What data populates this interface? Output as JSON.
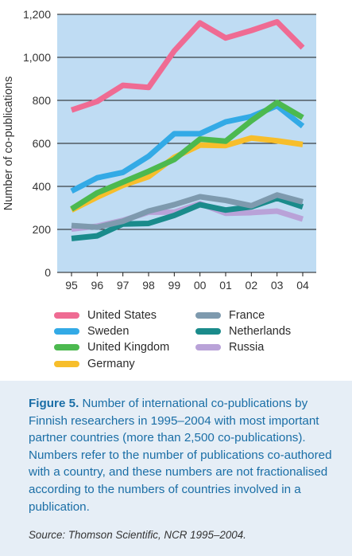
{
  "chart_data": {
    "type": "line",
    "x": [
      "95",
      "96",
      "97",
      "98",
      "99",
      "00",
      "01",
      "02",
      "03",
      "04"
    ],
    "ylabel": "Number of co-publications",
    "xlabel": "",
    "ylim": [
      0,
      1200
    ],
    "yticks": [
      "0",
      "200",
      "400",
      "600",
      "800",
      "1,000",
      "1,200"
    ],
    "ytick_values": [
      0,
      200,
      400,
      600,
      800,
      1000,
      1200
    ],
    "grid": true,
    "legend_position": "bottom",
    "series": [
      {
        "name": "United States",
        "color": "#ef6b93",
        "values": [
          755,
          795,
          870,
          860,
          1030,
          1160,
          1090,
          1125,
          1165,
          1045
        ]
      },
      {
        "name": "Sweden",
        "color": "#33aae6",
        "values": [
          378,
          440,
          465,
          540,
          645,
          645,
          700,
          725,
          775,
          680
        ]
      },
      {
        "name": "United Kingdom",
        "color": "#4cb94f",
        "values": [
          295,
          370,
          420,
          470,
          525,
          620,
          610,
          705,
          790,
          720
        ]
      },
      {
        "name": "Germany",
        "color": "#f7be2b",
        "values": [
          290,
          350,
          405,
          445,
          535,
          592,
          590,
          625,
          612,
          595
        ]
      },
      {
        "name": "France",
        "color": "#7e9aae",
        "values": [
          218,
          210,
          238,
          285,
          315,
          352,
          335,
          310,
          360,
          328
        ]
      },
      {
        "name": "Netherlands",
        "color": "#1a8b8b",
        "values": [
          158,
          170,
          225,
          228,
          265,
          315,
          290,
          305,
          345,
          305
        ]
      },
      {
        "name": "Russia",
        "color": "#b9a2d8",
        "values": [
          202,
          215,
          242,
          280,
          280,
          320,
          275,
          278,
          285,
          248
        ]
      }
    ]
  },
  "colors": {
    "plot_background": "#bfdcf3",
    "gridline": "#1a1a1a",
    "caption_background": "#e6eef6",
    "caption_text": "#1a6ea6"
  },
  "caption": {
    "label": "Figure 5.",
    "text": " Number of international co-publications by Finnish researchers in 1995–2004 with most important partner countries (more than 2,500 co-publications). Numbers refer to the number of publications co-authored with a country, and these numbers are not fractionalised according to the numbers of countries involved in a publication."
  },
  "source": "Source: Thomson Scientific, NCR 1995–2004."
}
